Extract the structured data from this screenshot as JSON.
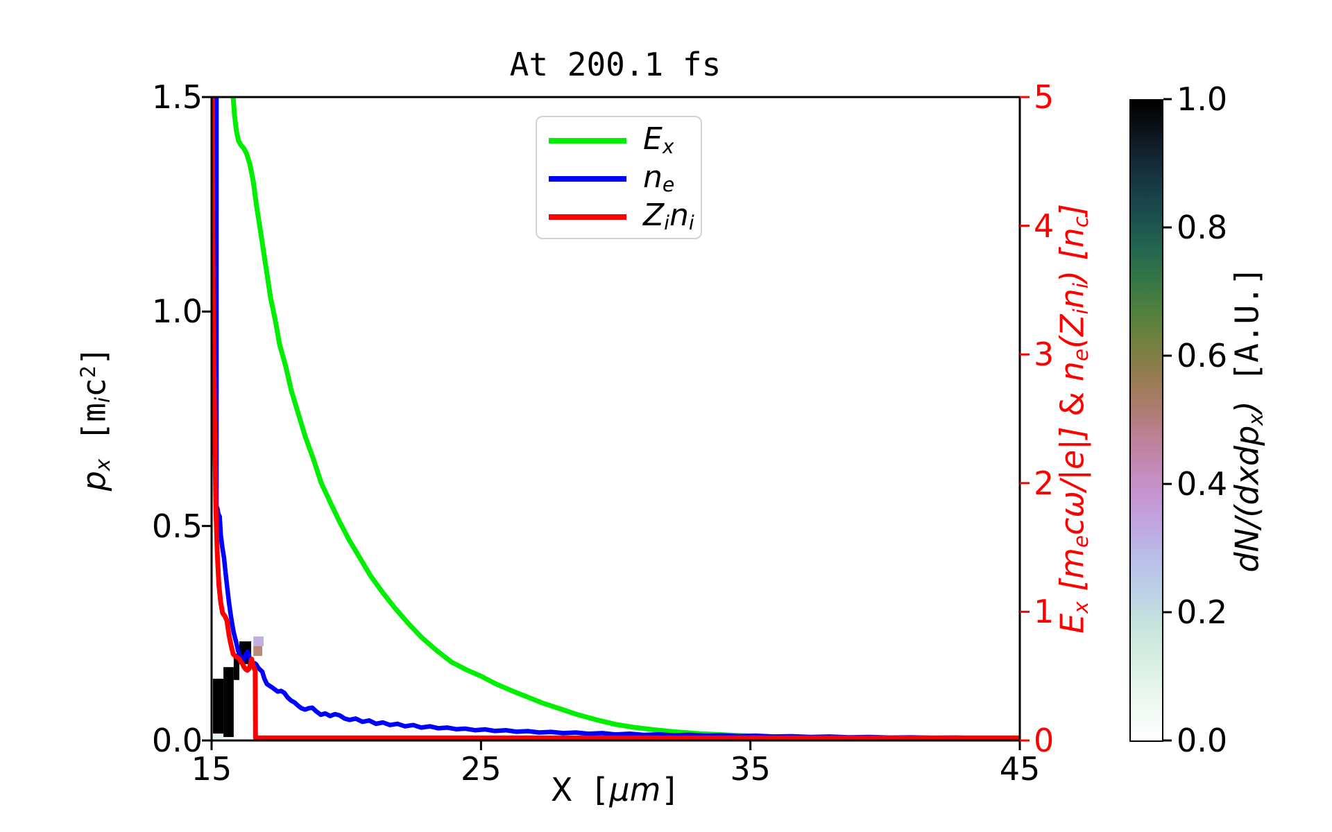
{
  "title": "At 200.1 fs",
  "colors": {
    "ex": "#00ee00",
    "ne": "#0000ff",
    "zini": "#ff0000",
    "right_axis": "#ff0000",
    "axis": "#000000"
  },
  "legend": {
    "items": [
      {
        "seg1": "E",
        "seg1_sub": "x",
        "seg2": "",
        "seg2_sub": ""
      },
      {
        "seg1": "n",
        "seg1_sub": "e",
        "seg2": "",
        "seg2_sub": ""
      },
      {
        "seg1": "Z",
        "seg1_sub": "i",
        "seg2": "n",
        "seg2_sub": "i"
      }
    ]
  },
  "labels": {
    "x": {
      "v": "X",
      "b1": "[",
      "mu": "μm",
      "b2": "]"
    },
    "y_left": {
      "v": "p",
      "v_sub": "x",
      "b1": "[",
      "m": "m",
      "m_sub": "i",
      "c": "c",
      "c_sup": "2",
      "b2": "]"
    },
    "y_right": {
      "e": "E",
      "e_sub": "x",
      "t1": " [",
      "m": "m",
      "m_sub": "e",
      "t2": "cω/|e|]",
      "amp": " & ",
      "n": "n",
      "n_sub": "e",
      "t3": "(",
      "z": "Z",
      "z_sub": "i",
      "n2": "n",
      "n2_sub": "i",
      "t4": ") [",
      "nc": "n",
      "nc_sub": "c",
      "t5": "]"
    },
    "colorbar": {
      "d": "dN/(dxdp",
      "d_sub": "x",
      "t1": ")",
      "t2": " [A.U.]"
    }
  },
  "chart_data": {
    "type": "line",
    "title": "At 200.1 fs",
    "axes": {
      "x": {
        "label": "X [μm]",
        "range": [
          15,
          45
        ],
        "ticks": [
          {
            "v": 15,
            "t": "15"
          },
          {
            "v": 25,
            "t": "25"
          },
          {
            "v": 35,
            "t": "35"
          },
          {
            "v": 45,
            "t": "45"
          }
        ]
      },
      "y_left": {
        "label": "p_x [m_i c^2]",
        "range": [
          0,
          1.5
        ],
        "ticks": [
          {
            "v": 0,
            "t": "0.0"
          },
          {
            "v": 0.5,
            "t": "0.5"
          },
          {
            "v": 1.0,
            "t": "1.0"
          },
          {
            "v": 1.5,
            "t": "1.5"
          }
        ]
      },
      "y_right": {
        "label": "E_x [m_e cω/|e|] & n_e(Z_i n_i) [n_c]",
        "range": [
          0,
          5
        ],
        "color": "#ff0000",
        "ticks": [
          {
            "v": 0,
            "t": "0"
          },
          {
            "v": 1,
            "t": "1"
          },
          {
            "v": 2,
            "t": "2"
          },
          {
            "v": 3,
            "t": "3"
          },
          {
            "v": 4,
            "t": "4"
          },
          {
            "v": 5,
            "t": "5"
          }
        ]
      }
    },
    "series": [
      {
        "name": "E_x",
        "axis": "right",
        "color": "#00ee00",
        "width": 7,
        "points": [
          [
            15.77,
            5.2
          ],
          [
            15.8,
            5.0
          ],
          [
            15.85,
            4.86
          ],
          [
            15.92,
            4.74
          ],
          [
            16.0,
            4.66
          ],
          [
            16.08,
            4.63
          ],
          [
            16.2,
            4.6
          ],
          [
            16.3,
            4.56
          ],
          [
            16.42,
            4.48
          ],
          [
            16.55,
            4.34
          ],
          [
            16.67,
            4.15
          ],
          [
            16.8,
            3.98
          ],
          [
            16.93,
            3.8
          ],
          [
            17.06,
            3.62
          ],
          [
            17.19,
            3.44
          ],
          [
            17.37,
            3.26
          ],
          [
            17.52,
            3.08
          ],
          [
            17.76,
            2.9
          ],
          [
            17.96,
            2.72
          ],
          [
            18.22,
            2.54
          ],
          [
            18.48,
            2.36
          ],
          [
            18.79,
            2.18
          ],
          [
            19.07,
            2.0
          ],
          [
            19.43,
            1.84
          ],
          [
            19.75,
            1.7
          ],
          [
            20.1,
            1.56
          ],
          [
            20.5,
            1.42
          ],
          [
            20.9,
            1.28
          ],
          [
            21.35,
            1.15
          ],
          [
            21.8,
            1.03
          ],
          [
            22.3,
            0.91
          ],
          [
            22.8,
            0.8
          ],
          [
            23.35,
            0.7
          ],
          [
            23.9,
            0.61
          ],
          [
            24.45,
            0.55
          ],
          [
            25.0,
            0.5
          ],
          [
            25.55,
            0.44
          ],
          [
            26.1,
            0.39
          ],
          [
            26.7,
            0.34
          ],
          [
            27.3,
            0.29
          ],
          [
            27.95,
            0.245
          ],
          [
            28.6,
            0.2
          ],
          [
            29.3,
            0.16
          ],
          [
            30.0,
            0.125
          ],
          [
            30.75,
            0.1
          ],
          [
            31.5,
            0.082
          ],
          [
            32.3,
            0.066
          ],
          [
            33.15,
            0.053
          ],
          [
            34.0,
            0.044
          ],
          [
            35.0,
            0.035
          ],
          [
            36.0,
            0.028
          ],
          [
            37.2,
            0.022
          ],
          [
            38.5,
            0.017
          ],
          [
            40.0,
            0.014
          ],
          [
            41.8,
            0.011
          ],
          [
            43.5,
            0.009
          ],
          [
            45.0,
            0.008
          ]
        ]
      },
      {
        "name": "n_e",
        "axis": "right",
        "color": "#0000ff",
        "width": 6.5,
        "points": [
          [
            15.18,
            5.2
          ],
          [
            15.18,
            1.82
          ],
          [
            15.22,
            1.8
          ],
          [
            15.25,
            1.76
          ],
          [
            15.3,
            1.74
          ],
          [
            15.34,
            1.6
          ],
          [
            15.4,
            1.5
          ],
          [
            15.46,
            1.42
          ],
          [
            15.52,
            1.3
          ],
          [
            15.58,
            1.19
          ],
          [
            15.64,
            1.08
          ],
          [
            15.7,
            0.99
          ],
          [
            15.76,
            0.91
          ],
          [
            15.82,
            0.84
          ],
          [
            15.88,
            0.79
          ],
          [
            15.93,
            0.75
          ],
          [
            15.98,
            0.7
          ],
          [
            16.03,
            0.67
          ],
          [
            16.08,
            0.645
          ],
          [
            16.13,
            0.615
          ],
          [
            16.19,
            0.625
          ],
          [
            16.26,
            0.66
          ],
          [
            16.33,
            0.69
          ],
          [
            16.38,
            0.665
          ],
          [
            16.43,
            0.625
          ],
          [
            16.49,
            0.6
          ],
          [
            16.54,
            0.575
          ],
          [
            16.6,
            0.6
          ],
          [
            16.66,
            0.59
          ],
          [
            16.73,
            0.565
          ],
          [
            16.8,
            0.55
          ],
          [
            16.88,
            0.535
          ],
          [
            16.96,
            0.48
          ],
          [
            17.05,
            0.44
          ],
          [
            17.15,
            0.425
          ],
          [
            17.26,
            0.41
          ],
          [
            17.36,
            0.395
          ],
          [
            17.46,
            0.38
          ],
          [
            17.58,
            0.385
          ],
          [
            17.7,
            0.37
          ],
          [
            17.82,
            0.335
          ],
          [
            17.95,
            0.31
          ],
          [
            18.08,
            0.295
          ],
          [
            18.21,
            0.27
          ],
          [
            18.34,
            0.25
          ],
          [
            18.47,
            0.24
          ],
          [
            18.6,
            0.25
          ],
          [
            18.74,
            0.255
          ],
          [
            18.89,
            0.225
          ],
          [
            19.05,
            0.2
          ],
          [
            19.22,
            0.21
          ],
          [
            19.4,
            0.19
          ],
          [
            19.58,
            0.205
          ],
          [
            19.75,
            0.195
          ],
          [
            19.94,
            0.17
          ],
          [
            20.12,
            0.16
          ],
          [
            20.35,
            0.17
          ],
          [
            20.6,
            0.145
          ],
          [
            20.85,
            0.155
          ],
          [
            21.1,
            0.13
          ],
          [
            21.36,
            0.14
          ],
          [
            21.62,
            0.12
          ],
          [
            21.9,
            0.13
          ],
          [
            22.18,
            0.11
          ],
          [
            22.48,
            0.12
          ],
          [
            22.78,
            0.1
          ],
          [
            23.1,
            0.11
          ],
          [
            23.42,
            0.095
          ],
          [
            23.75,
            0.1
          ],
          [
            24.08,
            0.088
          ],
          [
            24.42,
            0.092
          ],
          [
            24.78,
            0.08
          ],
          [
            25.15,
            0.086
          ],
          [
            25.52,
            0.074
          ],
          [
            25.92,
            0.08
          ],
          [
            26.32,
            0.068
          ],
          [
            26.74,
            0.073
          ],
          [
            27.16,
            0.062
          ],
          [
            27.6,
            0.067
          ],
          [
            28.05,
            0.057
          ],
          [
            28.52,
            0.062
          ],
          [
            29.0,
            0.052
          ],
          [
            29.5,
            0.057
          ],
          [
            30.0,
            0.047
          ],
          [
            30.52,
            0.052
          ],
          [
            31.05,
            0.043
          ],
          [
            31.6,
            0.047
          ],
          [
            32.16,
            0.04
          ],
          [
            32.74,
            0.044
          ],
          [
            33.33,
            0.037
          ],
          [
            33.94,
            0.04
          ],
          [
            34.56,
            0.033
          ],
          [
            35.2,
            0.037
          ],
          [
            35.86,
            0.03
          ],
          [
            36.54,
            0.033
          ],
          [
            37.23,
            0.027
          ],
          [
            37.94,
            0.03
          ],
          [
            38.67,
            0.024
          ],
          [
            39.42,
            0.027
          ],
          [
            40.19,
            0.022
          ],
          [
            40.98,
            0.024
          ],
          [
            41.79,
            0.02
          ],
          [
            42.62,
            0.022
          ],
          [
            43.47,
            0.018
          ],
          [
            44.34,
            0.02
          ],
          [
            45.0,
            0.017
          ]
        ]
      },
      {
        "name": "Z_i n_i",
        "axis": "right",
        "color": "#ff0000",
        "width": 7,
        "points": [
          [
            15.03,
            5.2
          ],
          [
            15.04,
            4.2
          ],
          [
            15.06,
            3.4
          ],
          [
            15.09,
            2.85
          ],
          [
            15.12,
            2.35
          ],
          [
            15.16,
            1.8
          ],
          [
            15.21,
            1.45
          ],
          [
            15.27,
            1.21
          ],
          [
            15.34,
            1.07
          ],
          [
            15.41,
            0.99
          ],
          [
            15.5,
            0.965
          ],
          [
            15.57,
            0.93
          ],
          [
            15.65,
            0.815
          ],
          [
            15.73,
            0.735
          ],
          [
            15.8,
            0.672
          ],
          [
            15.88,
            0.655
          ],
          [
            15.96,
            0.645
          ],
          [
            16.03,
            0.635
          ],
          [
            16.09,
            0.61
          ],
          [
            16.14,
            0.598
          ],
          [
            16.2,
            0.572
          ],
          [
            16.27,
            0.553
          ],
          [
            16.33,
            0.545
          ],
          [
            16.39,
            0.558
          ],
          [
            16.45,
            0.6
          ],
          [
            16.49,
            0.632
          ],
          [
            16.52,
            0.598
          ],
          [
            16.56,
            0.572
          ],
          [
            16.6,
            0.553
          ],
          [
            16.62,
            0.545
          ],
          [
            16.63,
            0.02
          ],
          [
            45.0,
            0.02
          ]
        ]
      }
    ],
    "histogram_cells": [
      {
        "x": [
          15.05,
          15.44
        ],
        "p": [
          0.016,
          0.144
        ],
        "c": "#000000"
      },
      {
        "x": [
          15.05,
          15.44
        ],
        "p": [
          0.0,
          0.016
        ],
        "c": "#e6f4ec"
      },
      {
        "x": [
          15.44,
          15.82
        ],
        "p": [
          0.008,
          0.171
        ],
        "c": "#000000"
      },
      {
        "x": [
          15.44,
          15.82
        ],
        "p": [
          0.0,
          0.008
        ],
        "c": "#eef8f2"
      },
      {
        "x": [
          15.82,
          16.03
        ],
        "p": [
          0.141,
          0.202
        ],
        "c": "#000000"
      },
      {
        "x": [
          16.03,
          16.47
        ],
        "p": [
          0.178,
          0.231
        ],
        "c": "#000000"
      },
      {
        "x": [
          16.55,
          16.93
        ],
        "p": [
          0.22,
          0.2425
        ],
        "c": "#c2aee0"
      },
      {
        "x": [
          16.55,
          16.88
        ],
        "p": [
          0.197,
          0.22
        ],
        "c": "#bb8a77"
      },
      {
        "x": [
          36.55,
          36.8
        ],
        "p": [
          0.004,
          0.013
        ],
        "c": "#c9b6e2"
      },
      {
        "x": [
          38.25,
          38.45
        ],
        "p": [
          0.003,
          0.011
        ],
        "c": "#b9a6d8"
      },
      {
        "x": [
          38.95,
          39.2
        ],
        "p": [
          0.003,
          0.011
        ],
        "c": "#bccbe8"
      }
    ],
    "colorbar": {
      "label": "dN/(dxdp_x) [A.U.]",
      "range": [
        0,
        1
      ],
      "ticks": [
        {
          "v": 0,
          "t": "0.0"
        },
        {
          "v": 0.2,
          "t": "0.2"
        },
        {
          "v": 0.4,
          "t": "0.4"
        },
        {
          "v": 0.6,
          "t": "0.6"
        },
        {
          "v": 0.8,
          "t": "0.8"
        },
        {
          "v": 1.0,
          "t": "1.0"
        }
      ],
      "gradient": [
        [
          "0%",
          "#ffffff"
        ],
        [
          "6%",
          "#eef8f1"
        ],
        [
          "12%",
          "#d9efe2"
        ],
        [
          "18%",
          "#c6e4dc"
        ],
        [
          "23%",
          "#bdd2e6"
        ],
        [
          "28%",
          "#bac0e9"
        ],
        [
          "33%",
          "#bfa9e2"
        ],
        [
          "38%",
          "#c496d2"
        ],
        [
          "43%",
          "#c489b4"
        ],
        [
          "48%",
          "#bc7f92"
        ],
        [
          "52%",
          "#ac7b6f"
        ],
        [
          "57%",
          "#947c51"
        ],
        [
          "62%",
          "#74803f"
        ],
        [
          "67%",
          "#52803d"
        ],
        [
          "72%",
          "#357647"
        ],
        [
          "77%",
          "#23654f"
        ],
        [
          "82%",
          "#1b4e4e"
        ],
        [
          "87%",
          "#173943"
        ],
        [
          "92%",
          "#12222f"
        ],
        [
          "96%",
          "#0a0f16"
        ],
        [
          "100%",
          "#000000"
        ]
      ]
    }
  }
}
